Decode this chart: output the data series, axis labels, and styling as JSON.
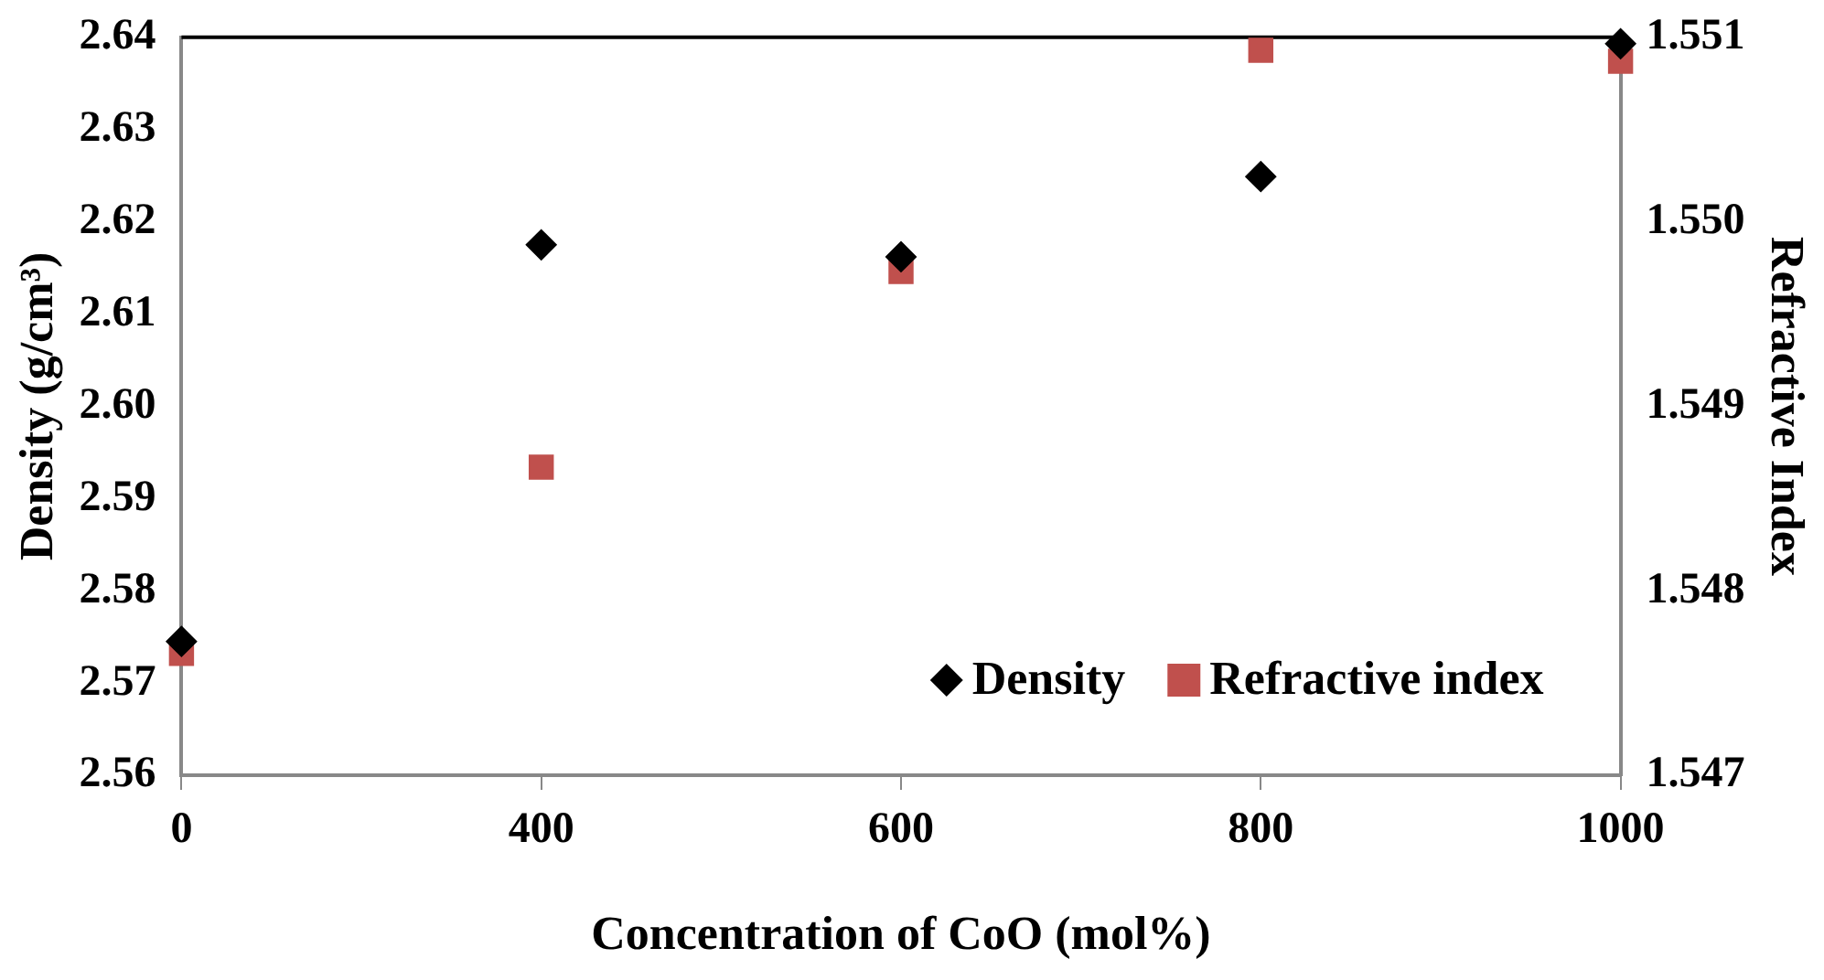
{
  "chart_data": {
    "type": "scatter",
    "xlabel": "Concentration of CoO (mol%)",
    "ylabel": "Density (g/cm³)",
    "y2label": "Refractive Index",
    "categories": [
      "0",
      "400",
      "600",
      "800",
      "1000"
    ],
    "series": [
      {
        "name": "Density",
        "color": "#000000",
        "marker": "diamond",
        "values": [
          2.5745,
          2.6175,
          2.6162,
          2.6249,
          2.6393
        ]
      },
      {
        "name": "Refractive index",
        "color": "#c0504d",
        "marker": "square",
        "axis": "y2",
        "values": [
          1.54766,
          1.54867,
          1.54973,
          1.55093,
          1.55087
        ]
      }
    ],
    "ylim": [
      2.56,
      2.64
    ],
    "yticks": [
      2.56,
      2.57,
      2.58,
      2.59,
      {
        "value": 2.6,
        "label": "2.60"
      },
      2.61,
      2.62,
      2.63,
      2.64
    ],
    "y2lim": [
      1.547,
      1.551
    ],
    "y2ticks": [
      1.547,
      1.548,
      1.549,
      {
        "value": 1.55,
        "label": "1.550"
      },
      1.551
    ],
    "grid": false,
    "legend": "bottom right"
  }
}
